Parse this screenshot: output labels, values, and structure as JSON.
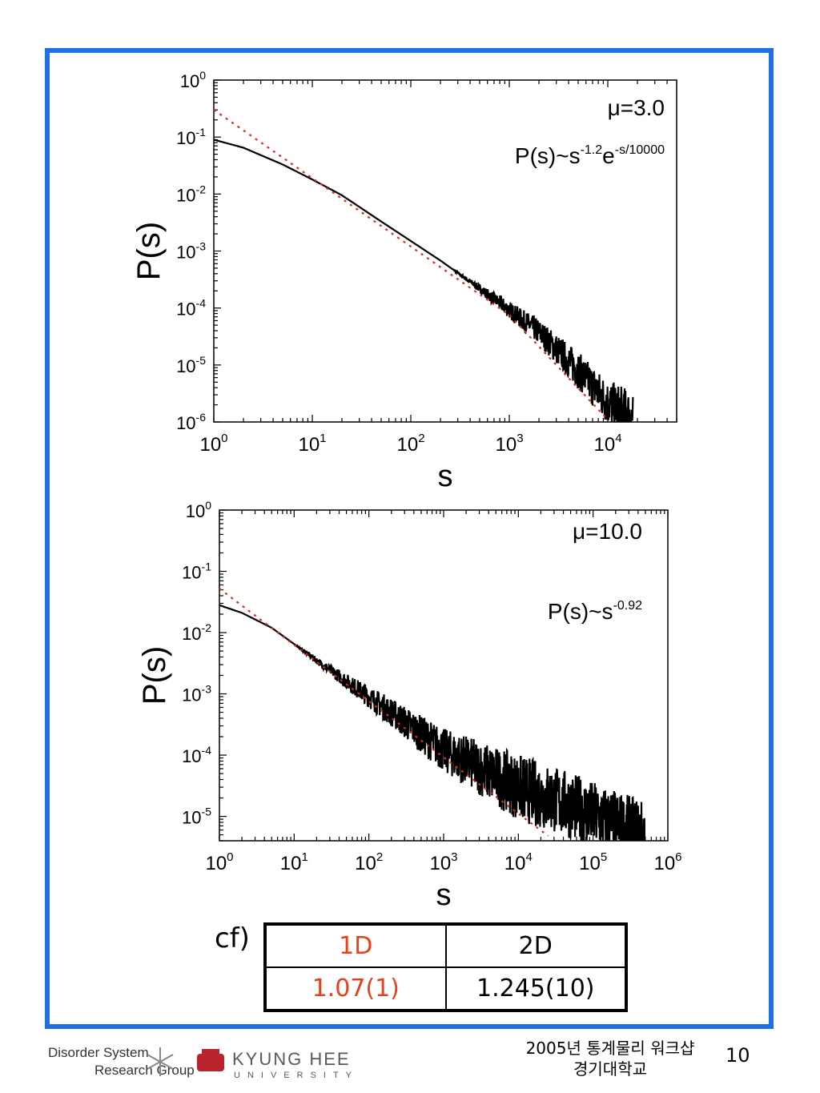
{
  "chart_data": [
    {
      "type": "line",
      "xlabel": "s",
      "ylabel": "P(s)",
      "xscale": "log",
      "yscale": "log",
      "xlim": [
        1,
        50000
      ],
      "ylim": [
        1e-06,
        1
      ],
      "x_ticks": [
        {
          "base": "10",
          "exp": "0"
        },
        {
          "base": "10",
          "exp": "1"
        },
        {
          "base": "10",
          "exp": "2"
        },
        {
          "base": "10",
          "exp": "3"
        },
        {
          "base": "10",
          "exp": "4"
        }
      ],
      "y_ticks": [
        {
          "base": "10",
          "exp": "0"
        },
        {
          "base": "10",
          "exp": "-1"
        },
        {
          "base": "10",
          "exp": "-2"
        },
        {
          "base": "10",
          "exp": "-3"
        },
        {
          "base": "10",
          "exp": "-4"
        },
        {
          "base": "10",
          "exp": "-5"
        },
        {
          "base": "10",
          "exp": "-6"
        }
      ],
      "annotations": {
        "mu": "μ=3.0",
        "formula_base": "P(s)~s",
        "formula_exp1": "-1.2",
        "formula_mid": "e",
        "formula_exp2": "-s/10000"
      },
      "series": [
        {
          "style": "solid-black",
          "x": [
            1,
            2,
            5,
            10,
            20,
            50,
            100,
            200,
            500,
            1000,
            2000,
            5000,
            10000,
            18000
          ],
          "y": [
            0.09,
            0.065,
            0.033,
            0.018,
            0.0095,
            0.0033,
            0.0015,
            0.00068,
            0.00022,
            9.25e-05,
            3.8e-05,
            8.1e-06,
            2.2e-06,
            1.2e-06
          ]
        },
        {
          "style": "dotted-red",
          "x": [
            1,
            10,
            100,
            1000,
            10000
          ],
          "y": [
            0.3,
            0.019,
            0.0012,
            7.54e-05,
            1.1e-06
          ]
        }
      ]
    },
    {
      "type": "line",
      "xlabel": "s",
      "ylabel": "P(s)",
      "xscale": "log",
      "yscale": "log",
      "xlim": [
        1,
        1000000
      ],
      "ylim": [
        4e-06,
        1
      ],
      "x_ticks": [
        {
          "base": "10",
          "exp": "0"
        },
        {
          "base": "10",
          "exp": "1"
        },
        {
          "base": "10",
          "exp": "2"
        },
        {
          "base": "10",
          "exp": "3"
        },
        {
          "base": "10",
          "exp": "4"
        },
        {
          "base": "10",
          "exp": "5"
        },
        {
          "base": "10",
          "exp": "6"
        }
      ],
      "y_ticks": [
        {
          "base": "10",
          "exp": "0"
        },
        {
          "base": "10",
          "exp": "-1"
        },
        {
          "base": "10",
          "exp": "-2"
        },
        {
          "base": "10",
          "exp": "-3"
        },
        {
          "base": "10",
          "exp": "-4"
        },
        {
          "base": "10",
          "exp": "-5"
        }
      ],
      "annotations": {
        "mu": "μ=10.0",
        "formula_base": "P(s)~s",
        "formula_exp1": "-0.92"
      },
      "series": [
        {
          "style": "solid-black",
          "x": [
            1,
            2,
            5,
            10,
            20,
            50,
            100,
            200,
            500,
            1000,
            2000,
            5000,
            10000,
            50000,
            200000,
            500000
          ],
          "y": [
            0.028,
            0.021,
            0.012,
            0.0065,
            0.0035,
            0.0016,
            0.0009,
            0.0005,
            0.00022,
            0.00012,
            8e-05,
            4.5e-05,
            3e-05,
            1.5e-05,
            7.5e-06,
            5e-06
          ]
        },
        {
          "style": "dotted-red",
          "x": [
            1,
            10,
            100,
            1000,
            10000,
            25000
          ],
          "y": [
            0.052,
            0.0063,
            0.00076,
            9.2e-05,
            1.11e-05,
            4.8e-06
          ]
        }
      ]
    }
  ],
  "table": {
    "prefix": "cf)",
    "headers": [
      "1D",
      "2D"
    ],
    "values": [
      "1.07(1)",
      "1.245(10)"
    ]
  },
  "footer": {
    "logo_line1": "Disorder System",
    "logo_line2": "Research Group",
    "university": "KYUNG HEE",
    "university_sub": "UNIVERSITY",
    "event_line1": "2005년 통계물리 워크샵",
    "event_line2": "경기대학교",
    "page": "10"
  },
  "colors": {
    "frame": "#1f6fe5",
    "highlight": "#e8401c",
    "fit_line": "#e0281c",
    "data_line": "#000000"
  }
}
